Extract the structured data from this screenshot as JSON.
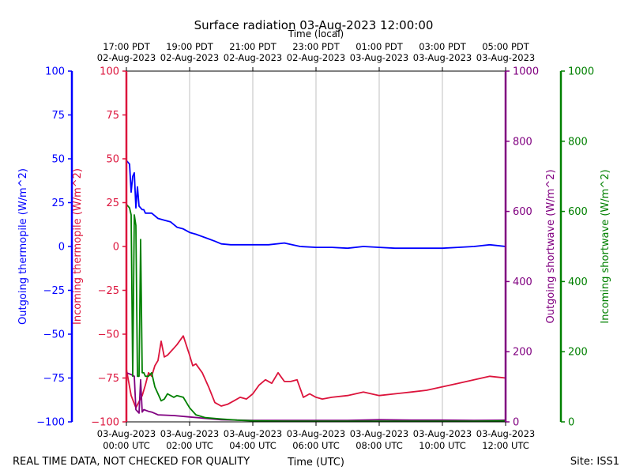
{
  "chart_data": {
    "type": "line",
    "title": "Surface radiation 03-Aug-2023 12:00:00",
    "top_axis_label": "Time (local)",
    "xlabel": "Time (UTC)",
    "xlim_hours_utc": [
      0,
      12
    ],
    "top_ticks": [
      {
        "hour": 0,
        "l1": "17:00 PDT",
        "l2": "02-Aug-2023"
      },
      {
        "hour": 2,
        "l1": "19:00 PDT",
        "l2": "02-Aug-2023"
      },
      {
        "hour": 4,
        "l1": "21:00 PDT",
        "l2": "02-Aug-2023"
      },
      {
        "hour": 6,
        "l1": "23:00 PDT",
        "l2": "02-Aug-2023"
      },
      {
        "hour": 8,
        "l1": "01:00 PDT",
        "l2": "03-Aug-2023"
      },
      {
        "hour": 10,
        "l1": "03:00 PDT",
        "l2": "03-Aug-2023"
      },
      {
        "hour": 12,
        "l1": "05:00 PDT",
        "l2": "03-Aug-2023"
      }
    ],
    "bottom_ticks": [
      {
        "hour": 0,
        "l1": "03-Aug-2023",
        "l2": "00:00 UTC"
      },
      {
        "hour": 2,
        "l1": "03-Aug-2023",
        "l2": "02:00 UTC"
      },
      {
        "hour": 4,
        "l1": "03-Aug-2023",
        "l2": "04:00 UTC"
      },
      {
        "hour": 6,
        "l1": "03-Aug-2023",
        "l2": "06:00 UTC"
      },
      {
        "hour": 8,
        "l1": "03-Aug-2023",
        "l2": "08:00 UTC"
      },
      {
        "hour": 10,
        "l1": "03-Aug-2023",
        "l2": "10:00 UTC"
      },
      {
        "hour": 12,
        "l1": "03-Aug-2023",
        "l2": "12:00 UTC"
      }
    ],
    "axes": [
      {
        "id": "out_thermo",
        "label": "Outgoing thermopile (W/m^2)",
        "color": "#0000ff",
        "side": "left-outer",
        "ylim": [
          -100,
          100
        ],
        "ticks": [
          -100,
          -75,
          -50,
          -25,
          0,
          25,
          50,
          75,
          100
        ]
      },
      {
        "id": "in_thermo",
        "label": "Incoming thermopile (W/m^2)",
        "color": "#dc143c",
        "side": "left-inner",
        "ylim": [
          -100,
          100
        ],
        "ticks": [
          -100,
          -75,
          -50,
          -25,
          0,
          25,
          50,
          75,
          100
        ]
      },
      {
        "id": "out_sw",
        "label": "Outgoing shortwave (W/m^2)",
        "color": "#800080",
        "side": "right-inner",
        "ylim": [
          0,
          1000
        ],
        "ticks": [
          0,
          200,
          400,
          600,
          800,
          1000
        ]
      },
      {
        "id": "in_sw",
        "label": "Incoming shortwave (W/m^2)",
        "color": "#008000",
        "side": "right-outer",
        "ylim": [
          0,
          1000
        ],
        "ticks": [
          0,
          200,
          400,
          600,
          800,
          1000
        ]
      }
    ],
    "series": [
      {
        "name": "Outgoing thermopile",
        "axis": "out_thermo",
        "color": "#0000ff",
        "x": [
          0,
          0.1,
          0.15,
          0.2,
          0.25,
          0.3,
          0.35,
          0.4,
          0.45,
          0.5,
          0.55,
          0.6,
          0.8,
          1.0,
          1.2,
          1.4,
          1.6,
          1.8,
          2.0,
          2.2,
          2.5,
          2.8,
          3.0,
          3.3,
          3.6,
          3.9,
          4.2,
          4.5,
          5.0,
          5.5,
          6.0,
          6.5,
          7.0,
          7.5,
          8.0,
          8.5,
          9.0,
          9.5,
          10.0,
          10.5,
          11.0,
          11.5,
          12.0
        ],
        "y": [
          49,
          47,
          31,
          40,
          42,
          22,
          34,
          23,
          22,
          21,
          21,
          19,
          19,
          16,
          15,
          14,
          11,
          10,
          8,
          7,
          5,
          3,
          1.5,
          1,
          1,
          1,
          1,
          1,
          2,
          0,
          -0.5,
          -0.5,
          -1,
          0,
          -0.5,
          -1,
          -1,
          -1,
          -1,
          -0.5,
          0,
          1,
          0
        ]
      },
      {
        "name": "Incoming thermopile",
        "axis": "in_thermo",
        "color": "#dc143c",
        "x": [
          0,
          0.15,
          0.3,
          0.5,
          0.6,
          0.7,
          0.8,
          0.9,
          1.0,
          1.1,
          1.2,
          1.3,
          1.5,
          1.6,
          1.8,
          2.0,
          2.1,
          2.2,
          2.4,
          2.6,
          2.8,
          3.0,
          3.2,
          3.4,
          3.6,
          3.8,
          4.0,
          4.2,
          4.4,
          4.6,
          4.8,
          5.0,
          5.2,
          5.4,
          5.6,
          5.8,
          6.0,
          6.2,
          6.5,
          7.0,
          7.5,
          8.0,
          8.5,
          9.0,
          9.5,
          10.0,
          10.5,
          11.0,
          11.5,
          12.0
        ],
        "y": [
          -70,
          -85,
          -92,
          -85,
          -79,
          -72,
          -74,
          -68,
          -65,
          -54,
          -63,
          -62,
          -58,
          -56,
          -51,
          -62,
          -68,
          -67,
          -72,
          -80,
          -89,
          -91,
          -90,
          -88,
          -86,
          -87,
          -84,
          -79,
          -76,
          -78,
          -72,
          -77,
          -77,
          -76,
          -86,
          -84,
          -86,
          -87,
          -86,
          -85,
          -83,
          -85,
          -84,
          -83,
          -82,
          -80,
          -78,
          -76,
          -74,
          -75
        ]
      },
      {
        "name": "Outgoing shortwave",
        "axis": "out_sw",
        "color": "#800080",
        "x": [
          0,
          0.15,
          0.25,
          0.3,
          0.4,
          0.45,
          0.5,
          0.55,
          0.7,
          0.8,
          1.0,
          1.5,
          2.0,
          2.5,
          3.0,
          4.0,
          5.0,
          6.0,
          7.0,
          8.0,
          9.0,
          10.0,
          11.0,
          12.0
        ],
        "y": [
          140,
          135,
          130,
          35,
          25,
          120,
          28,
          35,
          30,
          28,
          20,
          18,
          14,
          10,
          6,
          4,
          4,
          4,
          4,
          6,
          5,
          5,
          4,
          5
        ]
      },
      {
        "name": "Incoming shortwave",
        "axis": "in_sw",
        "color": "#008000",
        "x": [
          0,
          0.1,
          0.15,
          0.2,
          0.25,
          0.3,
          0.35,
          0.4,
          0.45,
          0.5,
          0.55,
          0.6,
          0.7,
          0.8,
          0.9,
          1.0,
          1.1,
          1.2,
          1.3,
          1.5,
          1.6,
          1.8,
          2.0,
          2.2,
          2.5,
          3.0,
          3.5,
          4.0,
          5.0,
          6.0,
          7.0,
          8.0,
          9.0,
          10.0,
          11.0,
          12.0
        ],
        "y": [
          620,
          610,
          590,
          130,
          590,
          560,
          130,
          130,
          520,
          140,
          140,
          130,
          130,
          140,
          100,
          80,
          60,
          65,
          80,
          70,
          75,
          70,
          40,
          20,
          12,
          8,
          5,
          3,
          2,
          2,
          2,
          2,
          2,
          2,
          2,
          3
        ]
      }
    ],
    "grid": "vertical"
  },
  "footer": {
    "left_note": "REAL TIME DATA, NOT CHECKED FOR QUALITY",
    "site": "Site: ISS1"
  }
}
